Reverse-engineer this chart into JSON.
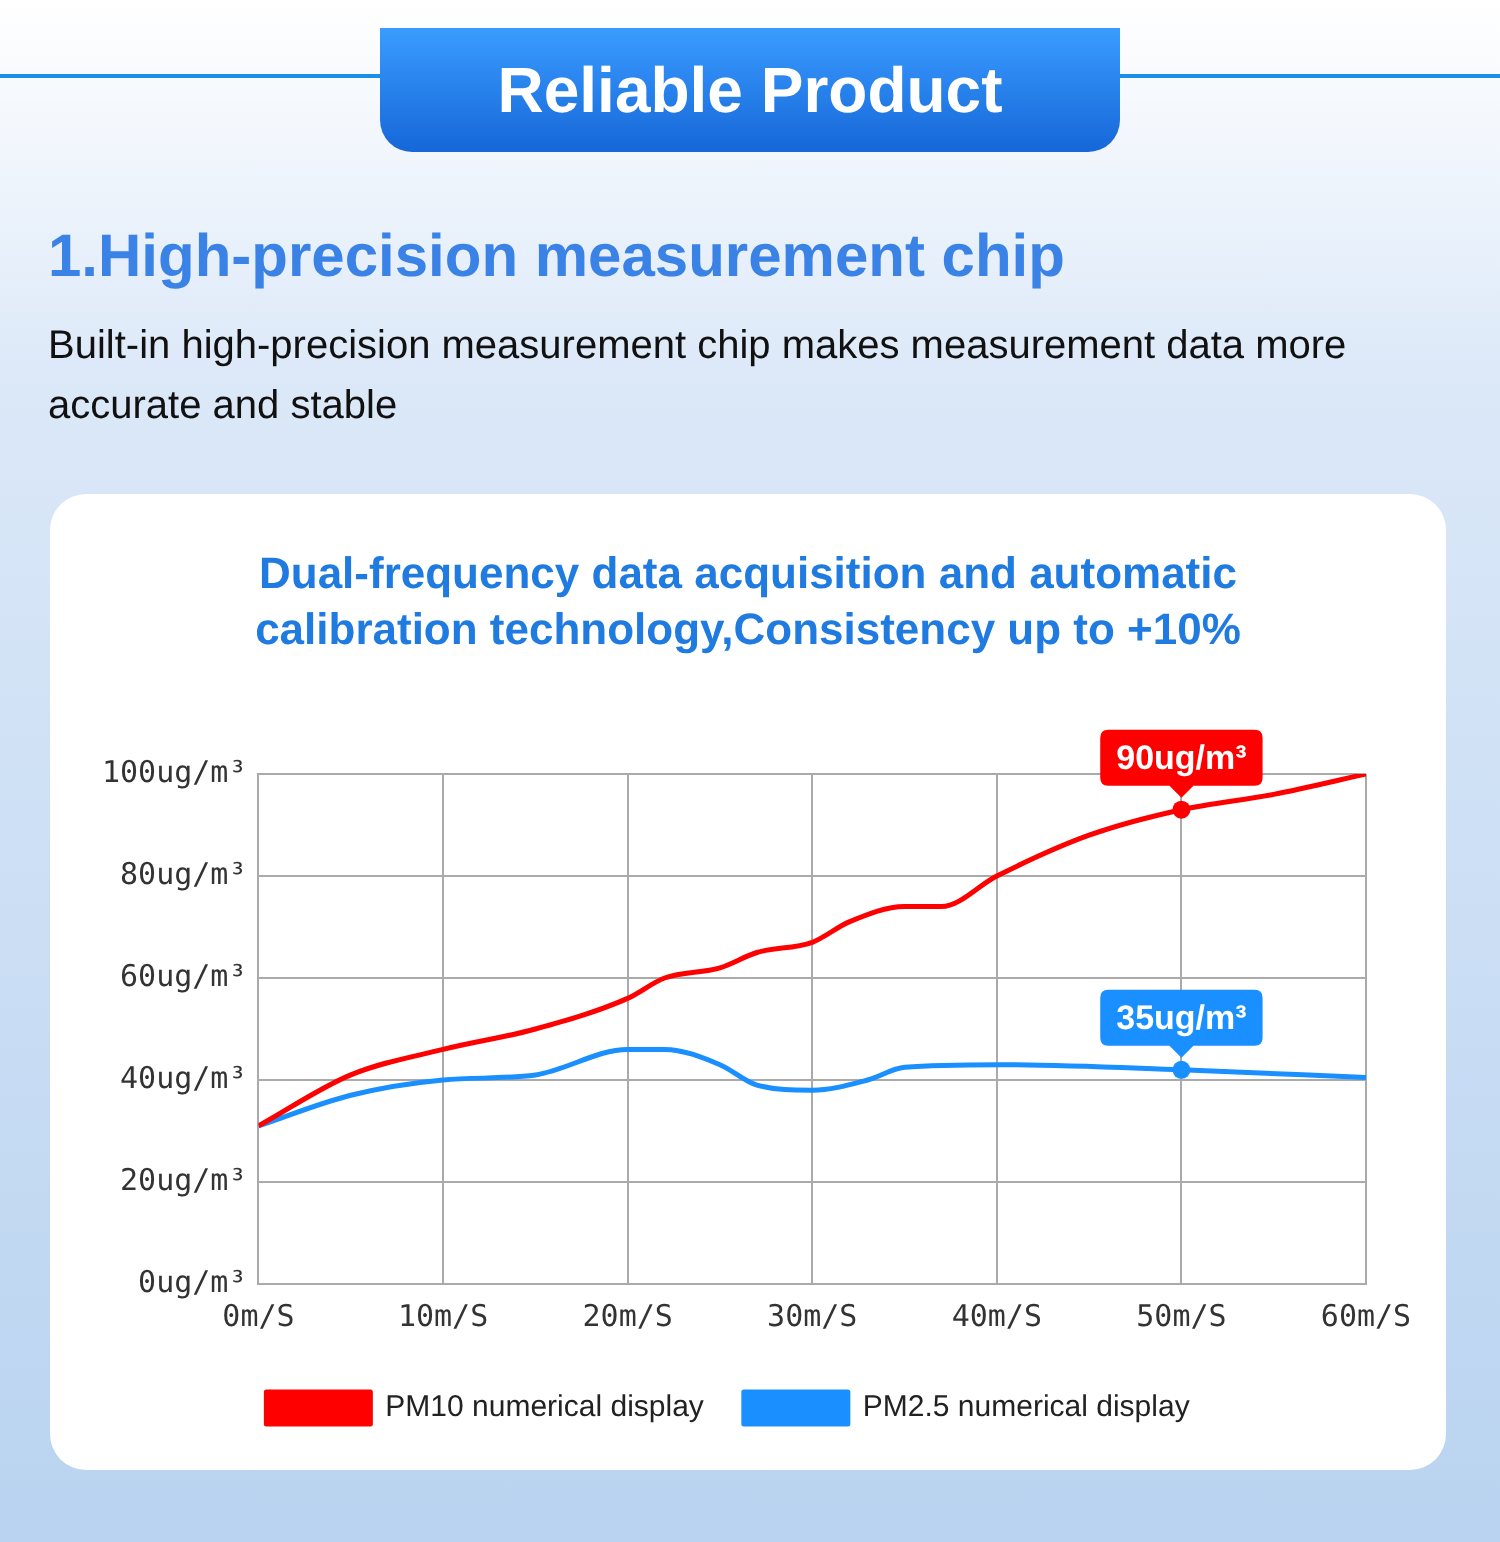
{
  "chart_data": {
    "type": "line",
    "title": "Dual-frequency data acquisition and automatic calibration technology,Consistency up to +10%",
    "annotations": [
      "Reliable Product",
      "1.High-precision measurement chip",
      "Built-in high-precision measurement chip makes measurement data more accurate and stable",
      {
        "text": "90ug/m³",
        "x": 50,
        "y": 93
      },
      {
        "text": "35ug/m³",
        "x": 50,
        "y": 42
      }
    ],
    "series": [
      {
        "name": "PM10 numerical display",
        "color": "#ff0000",
        "x": [
          0,
          5,
          10,
          15,
          20,
          22,
          25,
          27,
          30,
          32,
          35,
          37,
          40,
          45,
          50,
          55,
          60
        ],
        "values": [
          31,
          41,
          46,
          50,
          56,
          60,
          62,
          65,
          67,
          71,
          74,
          74,
          80,
          88,
          93,
          96,
          100
        ]
      },
      {
        "name": "PM2.5 numerical display",
        "color": "#1a8fff",
        "x": [
          0,
          5,
          10,
          15,
          20,
          22,
          25,
          27,
          30,
          33,
          35,
          40,
          50,
          60
        ],
        "values": [
          31,
          37,
          40,
          41,
          46,
          46,
          43,
          39,
          38,
          40,
          42.5,
          43,
          42,
          40.5
        ]
      }
    ],
    "xlim": [
      0,
      60
    ],
    "xticks": [
      {
        "value": 0,
        "label": "0m/S"
      },
      {
        "value": 10,
        "label": "10m/S"
      },
      {
        "value": 20,
        "label": "20m/S"
      },
      {
        "value": 30,
        "label": "30m/S"
      },
      {
        "value": 40,
        "label": "40m/S"
      },
      {
        "value": 50,
        "label": "50m/S"
      },
      {
        "value": 60,
        "label": "60m/S"
      }
    ],
    "ylim": [
      0,
      100
    ],
    "yticks": [
      {
        "value": 0,
        "label": "0ug/m³"
      },
      {
        "value": 20,
        "label": "20ug/m³"
      },
      {
        "value": 40,
        "label": "40ug/m³"
      },
      {
        "value": 60,
        "label": "60ug/m³"
      },
      {
        "value": 80,
        "label": "80ug/m³"
      },
      {
        "value": 100,
        "label": "100ug/m³"
      }
    ],
    "grid": true,
    "legend": "bottom",
    "marker": "none",
    "line_style": "solid"
  }
}
